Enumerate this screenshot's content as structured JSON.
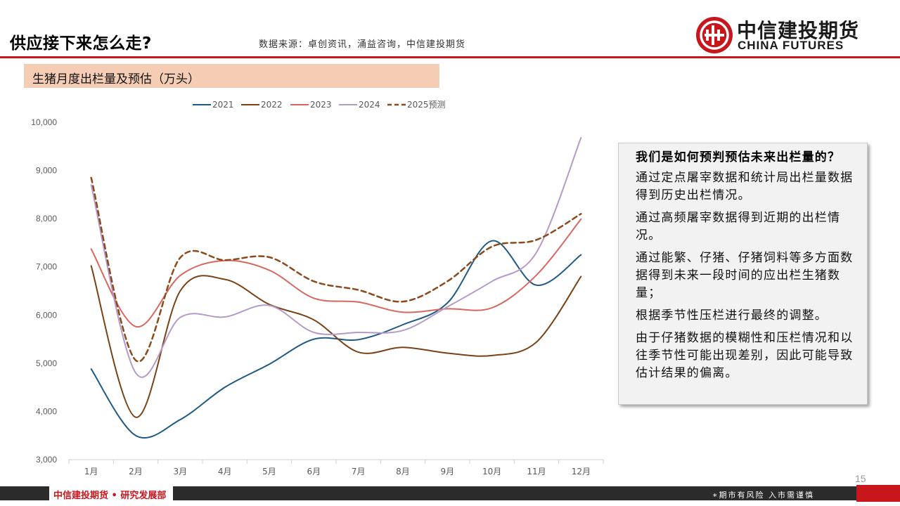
{
  "header": {
    "title": "供应接下来怎么走?",
    "source": "数据来源：卓创资讯，涌益咨询，中信建投期货",
    "logo_cn": "中信建投期货",
    "logo_en": "CHINA FUTURES"
  },
  "subtitle": "生猪月度出栏量及预估（万头）",
  "callout": {
    "title": "我们是如何预判预估未来出栏量的？",
    "items": [
      "通过定点屠宰数据和统计局出栏量数据得到历史出栏情况。",
      "通过高频屠宰数据得到近期的出栏情况。",
      "通过能繁、仔猪、仔猪饲料等多方面数据得到未来一段时间的应出栏生猪数量；",
      "根据季节性压栏进行最终的调整。",
      "由于仔猪数据的模糊性和压栏情况和以往季节性可能出现差别，因此可能导致估计结果的偏离。"
    ]
  },
  "footer": {
    "org": "中信建投期货 • 研究发展部",
    "risk": "∗期市有风险  入市需谨慎",
    "page": "15"
  },
  "chart_data": {
    "type": "line",
    "categories": [
      "1月",
      "2月",
      "3月",
      "4月",
      "5月",
      "6月",
      "7月",
      "8月",
      "9月",
      "10月",
      "11月",
      "12月"
    ],
    "ylim": [
      3000,
      10000
    ],
    "yticks": [
      3000,
      4000,
      5000,
      6000,
      7000,
      8000,
      9000,
      10000
    ],
    "ytick_labels": [
      "3,000",
      "4,000",
      "5,000",
      "6,000",
      "7,000",
      "8,000",
      "9,000",
      "10,000"
    ],
    "legend_position": "top",
    "series": [
      {
        "name": "2021",
        "color": "#1f5a85",
        "dash": false,
        "values": [
          4880,
          3500,
          3830,
          4500,
          4980,
          5500,
          5490,
          5800,
          6250,
          7540,
          6620,
          7250
        ]
      },
      {
        "name": "2022",
        "color": "#7a4216",
        "dash": false,
        "values": [
          7020,
          3880,
          6500,
          6740,
          6220,
          5900,
          5230,
          5330,
          5210,
          5160,
          5440,
          6800
        ]
      },
      {
        "name": "2023",
        "color": "#d9665e",
        "dash": false,
        "values": [
          7370,
          5760,
          6820,
          7130,
          6930,
          6350,
          6270,
          6060,
          6130,
          6150,
          6830,
          7990
        ]
      },
      {
        "name": "2024",
        "color": "#b49ac8",
        "dash": false,
        "values": [
          8700,
          4800,
          5950,
          5960,
          6200,
          5640,
          5640,
          5680,
          6170,
          6700,
          7300,
          9680
        ]
      },
      {
        "name": "2025预测",
        "color": "#8b4a1c",
        "dash": true,
        "values": [
          8850,
          5060,
          7190,
          7140,
          7200,
          6700,
          6520,
          6280,
          6700,
          7420,
          7560,
          8100
        ]
      }
    ]
  }
}
